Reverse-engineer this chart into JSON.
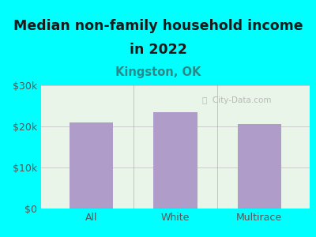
{
  "title_line1": "Median non-family household income",
  "title_line2": "in 2022",
  "subtitle": "Kingston, OK",
  "categories": [
    "All",
    "White",
    "Multirace"
  ],
  "values": [
    21000,
    23500,
    20500
  ],
  "bar_color": "#b09cc8",
  "background_outer": "#00ffff",
  "background_inner": "#e8f5e8",
  "ylim": [
    0,
    30000
  ],
  "yticks": [
    0,
    10000,
    20000,
    30000
  ],
  "ytick_labels": [
    "$0",
    "$10k",
    "$20k",
    "$30k"
  ],
  "title_fontsize": 12.5,
  "subtitle_fontsize": 10.5,
  "tick_fontsize": 9,
  "watermark": "ⓘ  City-Data.com",
  "title_color": "#1a1a1a",
  "subtitle_color": "#2a8a8a",
  "tick_color": "#555555",
  "grid_color": "#cccccc",
  "separator_color": "#999999"
}
